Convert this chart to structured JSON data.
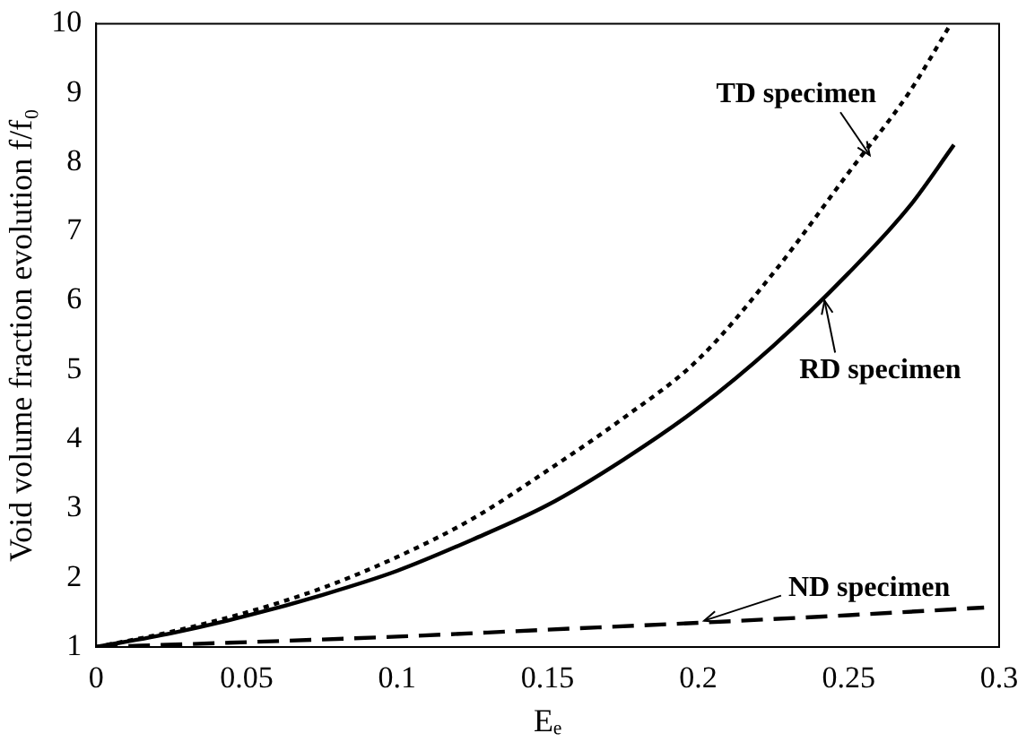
{
  "chart_data": {
    "type": "line",
    "xlabel": "Eₑ",
    "ylabel": "Void volume fraction evolution f/f₀",
    "xlim": [
      0,
      0.3
    ],
    "ylim": [
      1,
      10
    ],
    "xticks": [
      0,
      0.05,
      0.1,
      0.15,
      0.2,
      0.25,
      0.3
    ],
    "yticks": [
      1,
      2,
      3,
      4,
      5,
      6,
      7,
      8,
      9,
      10
    ],
    "grid": false,
    "legend": false,
    "marker": "none",
    "series": [
      {
        "color": "#000000",
        "line_style": "dotted",
        "x": [
          0,
          0.025,
          0.05,
          0.075,
          0.1,
          0.125,
          0.15,
          0.175,
          0.2,
          0.225,
          0.25,
          0.27,
          0.284
        ],
        "values": [
          1,
          1.22,
          1.5,
          1.85,
          2.3,
          2.85,
          3.55,
          4.3,
          5.15,
          6.4,
          7.85,
          9.0,
          10
        ]
      },
      {
        "color": "#000000",
        "line_style": "solid",
        "x": [
          0,
          0.025,
          0.05,
          0.075,
          0.1,
          0.125,
          0.15,
          0.175,
          0.2,
          0.225,
          0.25,
          0.27,
          0.285
        ],
        "values": [
          1,
          1.2,
          1.45,
          1.75,
          2.1,
          2.55,
          3.05,
          3.7,
          4.45,
          5.35,
          6.4,
          7.35,
          8.25
        ]
      },
      {
        "color": "#000000",
        "line_style": "dashed",
        "x": [
          0,
          0.05,
          0.1,
          0.15,
          0.2,
          0.25,
          0.295
        ],
        "values": [
          1,
          1.07,
          1.15,
          1.25,
          1.35,
          1.46,
          1.57
        ]
      }
    ],
    "annotations": [
      {
        "text": "TD specimen",
        "x": 0.257,
        "y": 8.1
      },
      {
        "text": "RD specimen",
        "x": 0.242,
        "y": 6.0
      },
      {
        "text": "ND specimen",
        "x": 0.202,
        "y": 1.38
      }
    ]
  }
}
